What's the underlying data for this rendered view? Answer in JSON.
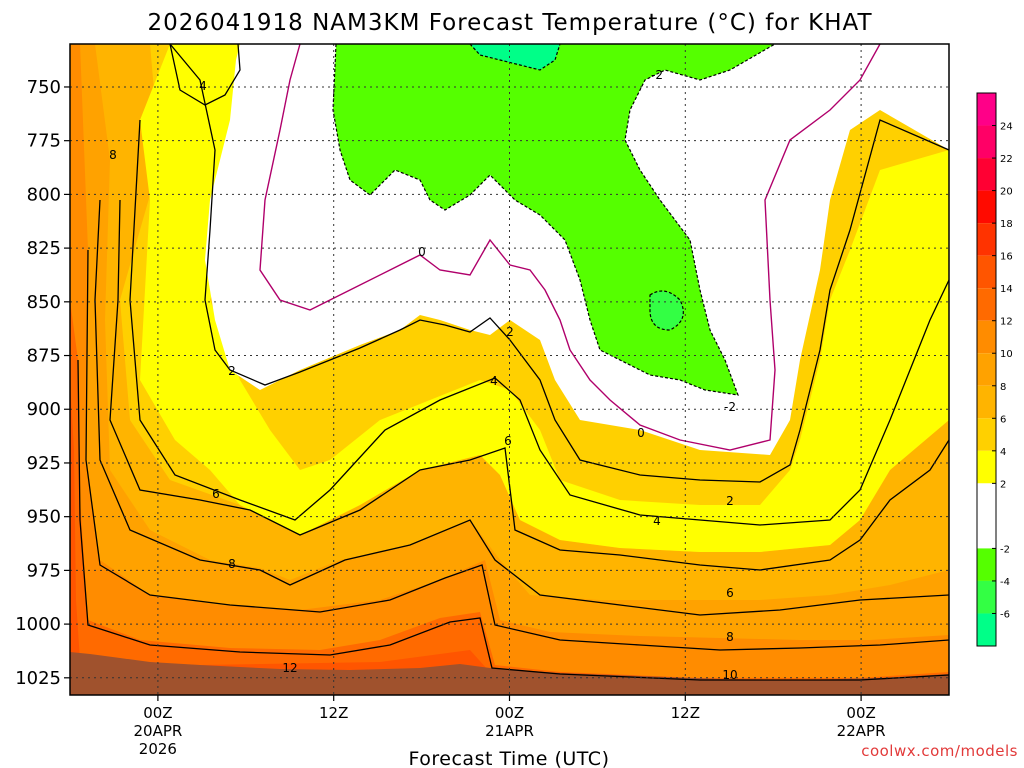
{
  "title": "2026041918 NAM3KM Forecast Temperature (°C) for KHAT",
  "credit": "coolwx.com/models",
  "chart_data": {
    "type": "heatmap",
    "title": "2026041918 NAM3KM Forecast Temperature (°C) for KHAT",
    "xlabel": "Forecast Time (UTC)",
    "ylabel": "",
    "y_axis": {
      "ticks": [
        "750",
        "775",
        "800",
        "825",
        "850",
        "875",
        "900",
        "925",
        "950",
        "975",
        "1000",
        "1025"
      ]
    },
    "x_axis": {
      "ticks": [
        {
          "lines": [
            "00Z",
            "20APR",
            "2026"
          ]
        },
        {
          "lines": [
            "12Z"
          ]
        },
        {
          "lines": [
            "00Z",
            "21APR"
          ]
        },
        {
          "lines": [
            "12Z"
          ]
        },
        {
          "lines": [
            "00Z",
            "22APR"
          ]
        }
      ]
    },
    "colorbar": {
      "labels": [
        "24",
        "22",
        "20",
        "18",
        "16",
        "14",
        "12",
        "10",
        "8",
        "6",
        "4",
        "2",
        "-2",
        "-4",
        "-6"
      ],
      "bins": [
        {
          "from": 24,
          "to": 26,
          "color": "#ff0088"
        },
        {
          "from": 22,
          "to": 24,
          "color": "#ff0066"
        },
        {
          "from": 20,
          "to": 22,
          "color": "#ff0033"
        },
        {
          "from": 18,
          "to": 20,
          "color": "#ff0a00"
        },
        {
          "from": 16,
          "to": 18,
          "color": "#ff3300"
        },
        {
          "from": 14,
          "to": 16,
          "color": "#ff5500"
        },
        {
          "from": 12,
          "to": 14,
          "color": "#ff6a00"
        },
        {
          "from": 10,
          "to": 12,
          "color": "#ff8c00"
        },
        {
          "from": 8,
          "to": 10,
          "color": "#ffa200"
        },
        {
          "from": 6,
          "to": 8,
          "color": "#ffb400"
        },
        {
          "from": 4,
          "to": 6,
          "color": "#ffd000"
        },
        {
          "from": 2,
          "to": 4,
          "color": "#ffff00"
        },
        {
          "from": -2,
          "to": 2,
          "color": "#ffffff"
        },
        {
          "from": -4,
          "to": -2,
          "color": "#55ff00"
        },
        {
          "from": -6,
          "to": -4,
          "color": "#33ff44"
        },
        {
          "from": -8,
          "to": -6,
          "color": "#00ff88"
        }
      ]
    },
    "terrain_color": "#a0522d",
    "zero_line_color": "#b0006b",
    "contour_labels": [
      "4",
      "8",
      "-2",
      "0",
      "2",
      "2",
      "4",
      "6",
      "6",
      "8",
      "12",
      "-2",
      "0",
      "2",
      "4",
      "6",
      "8",
      "10"
    ]
  }
}
